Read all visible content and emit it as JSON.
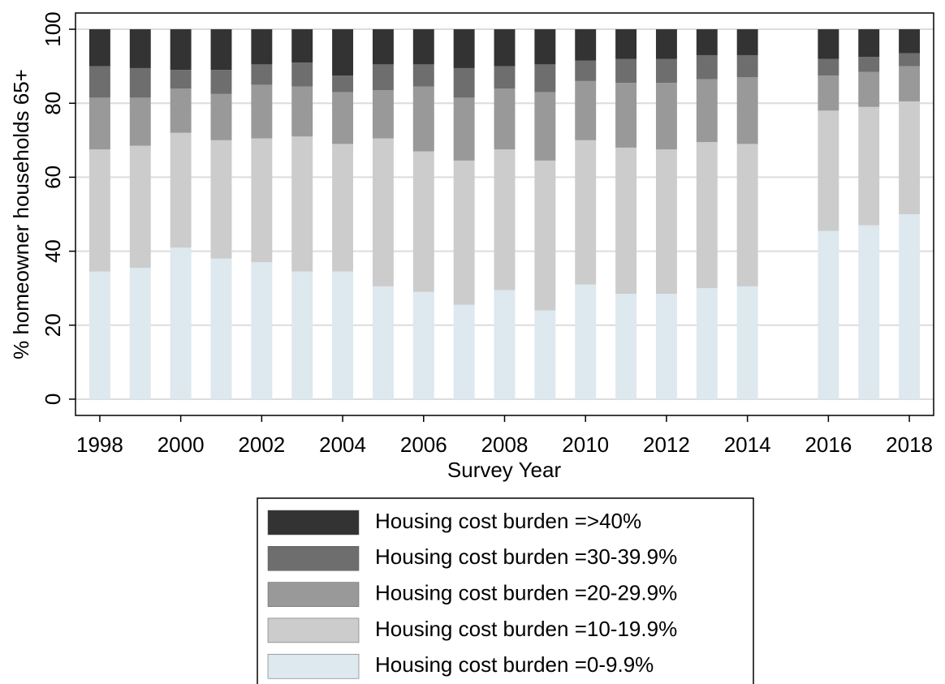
{
  "chart_data": {
    "type": "stacked_bar",
    "x": [
      1998,
      1999,
      2000,
      2001,
      2002,
      2003,
      2004,
      2005,
      2006,
      2007,
      2008,
      2009,
      2010,
      2011,
      2012,
      2013,
      2014,
      2016,
      2017,
      2018
    ],
    "series": [
      {
        "name": "Housing cost burden =0-9.9%",
        "color": "#dde8ef",
        "values": [
          34.5,
          35.5,
          41,
          38,
          37,
          34.5,
          34.5,
          30.5,
          29,
          25.5,
          29.5,
          24,
          31,
          28.5,
          28.5,
          30,
          30.5,
          45.5,
          47,
          50
        ]
      },
      {
        "name": "Housing cost burden =10-19.9%",
        "color": "#cccccc",
        "values": [
          33,
          33,
          31,
          32,
          33.5,
          36.5,
          34.5,
          40,
          38,
          39,
          38,
          40.5,
          39,
          39.5,
          39,
          39.5,
          38.5,
          32.5,
          32,
          30.5
        ]
      },
      {
        "name": "Housing cost burden =20-29.9%",
        "color": "#999999",
        "values": [
          14,
          13,
          12,
          12.5,
          14.5,
          13.5,
          14,
          13,
          17.5,
          17,
          16.5,
          18.5,
          16,
          17.5,
          18,
          17,
          18,
          9.5,
          9.5,
          9.5
        ]
      },
      {
        "name": "Housing cost burden =30-39.9%",
        "color": "#6e6e6e",
        "values": [
          8.5,
          8,
          5,
          6.5,
          5.5,
          6.5,
          4.5,
          7,
          6,
          8,
          6,
          7.5,
          5.5,
          6.5,
          6.5,
          6.5,
          6,
          4.5,
          4,
          3.5
        ]
      },
      {
        "name": "Housing cost burden =>40%",
        "color": "#333333",
        "values": [
          10,
          10.5,
          11,
          11,
          9.5,
          9,
          12.5,
          9.5,
          9.5,
          10.5,
          10,
          9.5,
          8.5,
          8,
          8,
          7,
          7,
          8,
          7.5,
          6.5
        ]
      }
    ],
    "xlabel": "Survey Year",
    "ylabel": "% homeowner households 65+",
    "xlim": [
      1997.4,
      2018.6
    ],
    "ylim": [
      -4.4,
      104.4
    ],
    "xticks": [
      1998,
      2000,
      2002,
      2004,
      2006,
      2008,
      2010,
      2012,
      2014,
      2016,
      2018
    ],
    "yticks": [
      0,
      20,
      40,
      60,
      80,
      100
    ],
    "grid": true,
    "legend": "bottom"
  }
}
